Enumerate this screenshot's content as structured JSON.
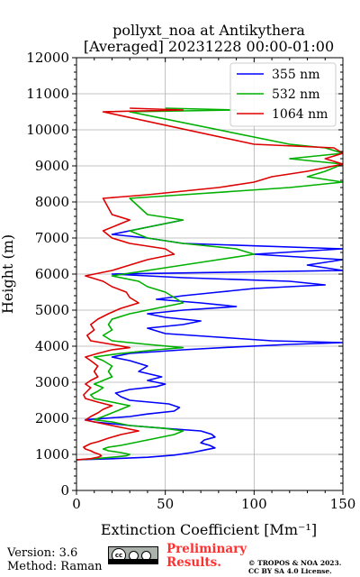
{
  "title_line1": "pollyxt_noa at Antikythera",
  "title_line2": "[Averaged] 20231228 00:00-01:00",
  "footer": {
    "version": "Version: 3.6",
    "method": "Method: Raman",
    "license_badge": "cc-by-sa-icon",
    "prelim_line1": "Preliminary",
    "prelim_line2": "Results.",
    "copyright_line1": "© TROPOS & NOA 2023.",
    "copyright_line2": "CC BY SA 4.0 License."
  },
  "chart_data": {
    "type": "line",
    "xlabel": "Extinction Coefficient [Mm⁻¹]",
    "ylabel": "Height (m)",
    "xlim": [
      0,
      150
    ],
    "ylim": [
      0,
      12000
    ],
    "xticks": [
      0,
      50,
      100,
      150
    ],
    "yticks": [
      0,
      1000,
      2000,
      3000,
      4000,
      5000,
      6000,
      7000,
      8000,
      9000,
      10000,
      11000,
      12000
    ],
    "grid": true,
    "legend_position": "top-right",
    "series": [
      {
        "name": "355 nm",
        "color": "#0000ff",
        "points": [
          [
            0,
            850
          ],
          [
            20,
            880
          ],
          [
            40,
            920
          ],
          [
            55,
            980
          ],
          [
            65,
            1050
          ],
          [
            72,
            1120
          ],
          [
            78,
            1180
          ],
          [
            75,
            1250
          ],
          [
            70,
            1320
          ],
          [
            72,
            1400
          ],
          [
            78,
            1480
          ],
          [
            76,
            1560
          ],
          [
            70,
            1650
          ],
          [
            50,
            1720
          ],
          [
            30,
            1800
          ],
          [
            10,
            1900
          ],
          [
            5,
            1960
          ],
          [
            30,
            2050
          ],
          [
            40,
            2120
          ],
          [
            55,
            2200
          ],
          [
            58,
            2300
          ],
          [
            52,
            2400
          ],
          [
            30,
            2500
          ],
          [
            25,
            2600
          ],
          [
            22,
            2700
          ],
          [
            30,
            2800
          ],
          [
            45,
            2880
          ],
          [
            50,
            2950
          ],
          [
            40,
            3050
          ],
          [
            48,
            3150
          ],
          [
            35,
            3300
          ],
          [
            40,
            3450
          ],
          [
            30,
            3600
          ],
          [
            20,
            3700
          ],
          [
            30,
            3800
          ],
          [
            60,
            3900
          ],
          [
            90,
            3980
          ],
          [
            120,
            4050
          ],
          [
            150,
            4100
          ],
          [
            110,
            4150
          ],
          [
            80,
            4250
          ],
          [
            50,
            4350
          ],
          [
            40,
            4500
          ],
          [
            60,
            4600
          ],
          [
            70,
            4700
          ],
          [
            50,
            4800
          ],
          [
            40,
            4900
          ],
          [
            60,
            5000
          ],
          [
            90,
            5100
          ],
          [
            70,
            5200
          ],
          [
            45,
            5300
          ],
          [
            60,
            5400
          ],
          [
            80,
            5500
          ],
          [
            100,
            5600
          ],
          [
            140,
            5700
          ],
          [
            120,
            5800
          ],
          [
            60,
            5900
          ],
          [
            20,
            6000
          ],
          [
            150,
            6100
          ],
          [
            130,
            6250
          ],
          [
            150,
            6400
          ],
          [
            100,
            6550
          ],
          [
            150,
            6700
          ],
          [
            60,
            6850
          ],
          [
            40,
            7000
          ],
          [
            20,
            7100
          ],
          [
            40,
            7300
          ],
          [
            60,
            7500
          ]
        ]
      },
      {
        "name": "532 nm",
        "color": "#00b000",
        "points": [
          [
            0,
            850
          ],
          [
            10,
            880
          ],
          [
            20,
            920
          ],
          [
            28,
            960
          ],
          [
            30,
            1000
          ],
          [
            25,
            1050
          ],
          [
            18,
            1100
          ],
          [
            15,
            1150
          ],
          [
            18,
            1200
          ],
          [
            25,
            1250
          ],
          [
            35,
            1350
          ],
          [
            45,
            1450
          ],
          [
            55,
            1550
          ],
          [
            60,
            1650
          ],
          [
            50,
            1720
          ],
          [
            30,
            1800
          ],
          [
            20,
            1900
          ],
          [
            10,
            1960
          ],
          [
            15,
            2050
          ],
          [
            20,
            2150
          ],
          [
            25,
            2250
          ],
          [
            30,
            2350
          ],
          [
            20,
            2450
          ],
          [
            10,
            2550
          ],
          [
            8,
            2650
          ],
          [
            12,
            2750
          ],
          [
            15,
            2850
          ],
          [
            10,
            2950
          ],
          [
            15,
            3050
          ],
          [
            20,
            3150
          ],
          [
            18,
            3300
          ],
          [
            20,
            3450
          ],
          [
            15,
            3600
          ],
          [
            10,
            3700
          ],
          [
            25,
            3800
          ],
          [
            45,
            3900
          ],
          [
            60,
            3960
          ],
          [
            40,
            4050
          ],
          [
            20,
            4150
          ],
          [
            15,
            4300
          ],
          [
            20,
            4450
          ],
          [
            18,
            4600
          ],
          [
            20,
            4750
          ],
          [
            30,
            4900
          ],
          [
            45,
            5050
          ],
          [
            60,
            5200
          ],
          [
            55,
            5350
          ],
          [
            50,
            5500
          ],
          [
            40,
            5650
          ],
          [
            35,
            5800
          ],
          [
            20,
            5950
          ],
          [
            40,
            6100
          ],
          [
            60,
            6250
          ],
          [
            80,
            6400
          ],
          [
            100,
            6550
          ],
          [
            90,
            6700
          ],
          [
            60,
            6850
          ],
          [
            40,
            7000
          ],
          [
            30,
            7200
          ],
          [
            50,
            7400
          ],
          [
            60,
            7500
          ],
          [
            40,
            7650
          ],
          [
            30,
            8100
          ],
          [
            60,
            8200
          ],
          [
            90,
            8300
          ],
          [
            120,
            8400
          ],
          [
            150,
            8550
          ],
          [
            130,
            8700
          ],
          [
            140,
            8850
          ],
          [
            150,
            9050
          ],
          [
            120,
            9200
          ],
          [
            150,
            9350
          ],
          [
            140,
            9500
          ],
          [
            120,
            9600
          ],
          [
            30,
            10500
          ],
          [
            90,
            10550
          ],
          [
            50,
            10600
          ]
        ]
      },
      {
        "name": "1064 nm",
        "color": "#dd0000",
        "points": [
          [
            0,
            850
          ],
          [
            8,
            880
          ],
          [
            12,
            920
          ],
          [
            14,
            960
          ],
          [
            13,
            1000
          ],
          [
            10,
            1050
          ],
          [
            8,
            1100
          ],
          [
            5,
            1150
          ],
          [
            4,
            1200
          ],
          [
            6,
            1250
          ],
          [
            8,
            1300
          ],
          [
            12,
            1350
          ],
          [
            18,
            1450
          ],
          [
            25,
            1550
          ],
          [
            35,
            1650
          ],
          [
            25,
            1750
          ],
          [
            15,
            1850
          ],
          [
            5,
            1950
          ],
          [
            8,
            2050
          ],
          [
            12,
            2150
          ],
          [
            15,
            2250
          ],
          [
            20,
            2350
          ],
          [
            12,
            2450
          ],
          [
            5,
            2550
          ],
          [
            4,
            2650
          ],
          [
            6,
            2750
          ],
          [
            8,
            2850
          ],
          [
            5,
            2950
          ],
          [
            8,
            3050
          ],
          [
            12,
            3150
          ],
          [
            10,
            3300
          ],
          [
            12,
            3450
          ],
          [
            8,
            3600
          ],
          [
            5,
            3700
          ],
          [
            12,
            3800
          ],
          [
            20,
            3900
          ],
          [
            30,
            3960
          ],
          [
            20,
            4050
          ],
          [
            8,
            4150
          ],
          [
            6,
            4300
          ],
          [
            10,
            4450
          ],
          [
            8,
            4600
          ],
          [
            12,
            4750
          ],
          [
            18,
            4900
          ],
          [
            25,
            5050
          ],
          [
            35,
            5200
          ],
          [
            30,
            5350
          ],
          [
            28,
            5500
          ],
          [
            20,
            5650
          ],
          [
            15,
            5800
          ],
          [
            5,
            5950
          ],
          [
            20,
            6100
          ],
          [
            30,
            6250
          ],
          [
            40,
            6400
          ],
          [
            55,
            6550
          ],
          [
            50,
            6700
          ],
          [
            30,
            6850
          ],
          [
            20,
            7000
          ],
          [
            15,
            7200
          ],
          [
            25,
            7400
          ],
          [
            30,
            7500
          ],
          [
            20,
            7650
          ],
          [
            15,
            8100
          ],
          [
            40,
            8200
          ],
          [
            60,
            8300
          ],
          [
            80,
            8400
          ],
          [
            100,
            8550
          ],
          [
            110,
            8700
          ],
          [
            130,
            8850
          ],
          [
            150,
            9050
          ],
          [
            140,
            9200
          ],
          [
            150,
            9350
          ],
          [
            145,
            9500
          ],
          [
            100,
            9600
          ],
          [
            15,
            10500
          ],
          [
            60,
            10550
          ],
          [
            30,
            10600
          ]
        ]
      }
    ]
  }
}
